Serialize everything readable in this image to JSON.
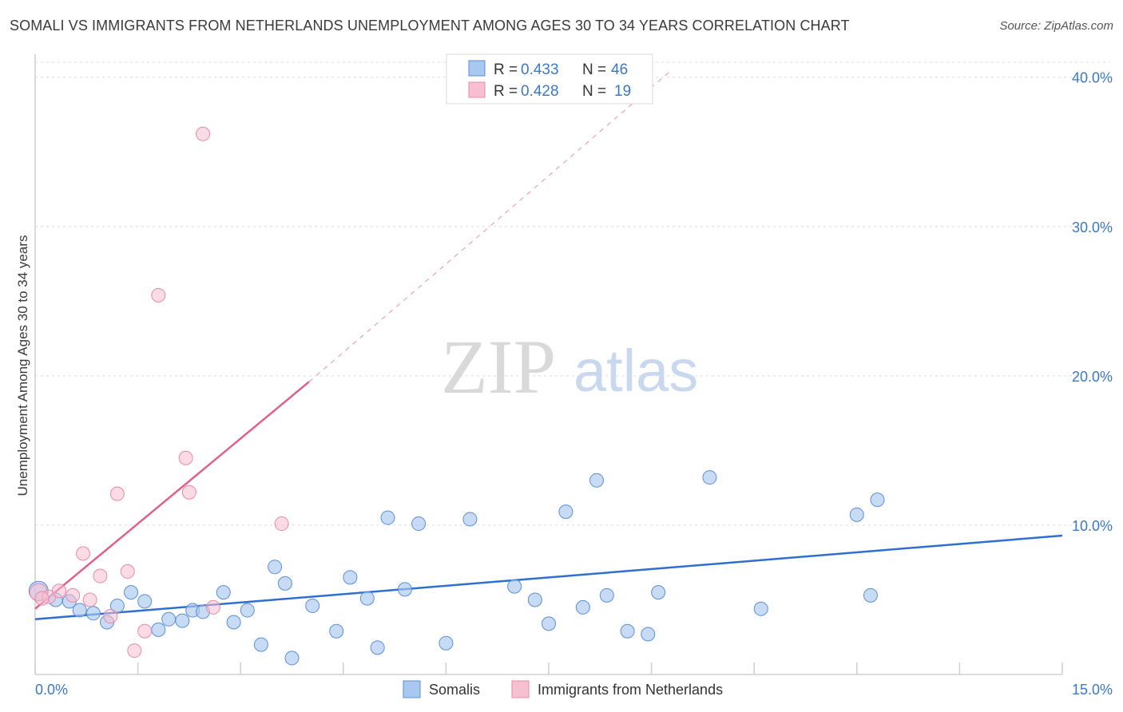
{
  "title": "SOMALI VS IMMIGRANTS FROM NETHERLANDS UNEMPLOYMENT AMONG AGES 30 TO 34 YEARS CORRELATION CHART",
  "source": "Source: ZipAtlas.com",
  "colors": {
    "somali_fill": "#a9c8ef",
    "somali_stroke": "#5b8fd6",
    "somali_line": "#2f6fcf",
    "neth_fill": "#f7c0d0",
    "neth_stroke": "#e88aa6",
    "neth_line": "#e0608a",
    "grid": "#dcdcdc",
    "tick_text": "#3b78c8"
  },
  "legend": {
    "rows": [
      {
        "r_label": "R = ",
        "r_value": "0.433",
        "n_label": "N = ",
        "n_value": "46"
      },
      {
        "r_label": "R = ",
        "r_value": "0.428",
        "n_label": "N = ",
        "n_value": "19"
      }
    ]
  },
  "watermark": {
    "zip": "ZIP",
    "atlas": "atlas"
  },
  "chart_data": {
    "type": "scatter",
    "title": "SOMALI VS IMMIGRANTS FROM NETHERLANDS UNEMPLOYMENT AMONG AGES 30 TO 34 YEARS CORRELATION CHART",
    "xlabel": "",
    "ylabel": "Unemployment Among Ages 30 to 34 years",
    "xlim": [
      0,
      15
    ],
    "ylim": [
      0,
      41
    ],
    "x_tick_labels": [
      "0.0%",
      "15.0%"
    ],
    "y_ticks": [
      10,
      20,
      30,
      40
    ],
    "y_tick_labels": [
      "10.0%",
      "20.0%",
      "30.0%",
      "40.0%"
    ],
    "grid": true,
    "legend_position": "top-center",
    "series": [
      {
        "name": "Somalis",
        "points": [
          [
            0.05,
            5.6
          ],
          [
            0.3,
            5.0
          ],
          [
            0.5,
            4.9
          ],
          [
            0.65,
            4.3
          ],
          [
            0.85,
            4.1
          ],
          [
            1.05,
            3.5
          ],
          [
            1.2,
            4.6
          ],
          [
            1.4,
            5.5
          ],
          [
            1.6,
            4.9
          ],
          [
            1.8,
            3.0
          ],
          [
            1.95,
            3.7
          ],
          [
            2.15,
            3.6
          ],
          [
            2.3,
            4.3
          ],
          [
            2.45,
            4.2
          ],
          [
            2.75,
            5.5
          ],
          [
            2.9,
            3.5
          ],
          [
            3.1,
            4.3
          ],
          [
            3.3,
            2.0
          ],
          [
            3.5,
            7.2
          ],
          [
            3.65,
            6.1
          ],
          [
            3.75,
            1.1
          ],
          [
            4.05,
            4.6
          ],
          [
            4.4,
            2.9
          ],
          [
            4.6,
            6.5
          ],
          [
            4.85,
            5.1
          ],
          [
            5.0,
            1.8
          ],
          [
            5.15,
            10.5
          ],
          [
            5.4,
            5.7
          ],
          [
            5.6,
            10.1
          ],
          [
            6.0,
            2.1
          ],
          [
            6.35,
            10.4
          ],
          [
            7.0,
            5.9
          ],
          [
            7.3,
            5.0
          ],
          [
            7.5,
            3.4
          ],
          [
            7.75,
            10.9
          ],
          [
            8.0,
            4.5
          ],
          [
            8.2,
            13.0
          ],
          [
            8.35,
            5.3
          ],
          [
            8.65,
            2.9
          ],
          [
            8.95,
            2.7
          ],
          [
            9.1,
            5.5
          ],
          [
            9.85,
            13.2
          ],
          [
            10.6,
            4.4
          ],
          [
            12.0,
            10.7
          ],
          [
            12.2,
            5.3
          ],
          [
            12.3,
            11.7
          ]
        ],
        "trend": {
          "x": [
            0,
            15
          ],
          "y": [
            3.7,
            9.3
          ]
        }
      },
      {
        "name": "Immigrants from Netherlands",
        "points": [
          [
            0.05,
            5.5
          ],
          [
            0.2,
            5.2
          ],
          [
            0.35,
            5.6
          ],
          [
            0.55,
            5.3
          ],
          [
            0.7,
            8.1
          ],
          [
            0.8,
            5.0
          ],
          [
            0.95,
            6.6
          ],
          [
            1.1,
            3.9
          ],
          [
            1.2,
            12.1
          ],
          [
            1.35,
            6.9
          ],
          [
            1.45,
            1.6
          ],
          [
            1.6,
            2.9
          ],
          [
            1.8,
            25.4
          ],
          [
            2.2,
            14.5
          ],
          [
            2.25,
            12.2
          ],
          [
            2.45,
            36.2
          ],
          [
            2.6,
            4.5
          ],
          [
            3.6,
            10.1
          ],
          [
            0.1,
            5.1
          ]
        ],
        "trend": {
          "x": [
            0,
            4.0
          ],
          "y": [
            4.4,
            19.6
          ]
        },
        "trend_extension": {
          "x": [
            4.0,
            9.3
          ],
          "y": [
            19.6,
            40.5
          ]
        }
      }
    ]
  },
  "bottom_legend": {
    "items": [
      "Somalis",
      "Immigrants from Netherlands"
    ]
  }
}
